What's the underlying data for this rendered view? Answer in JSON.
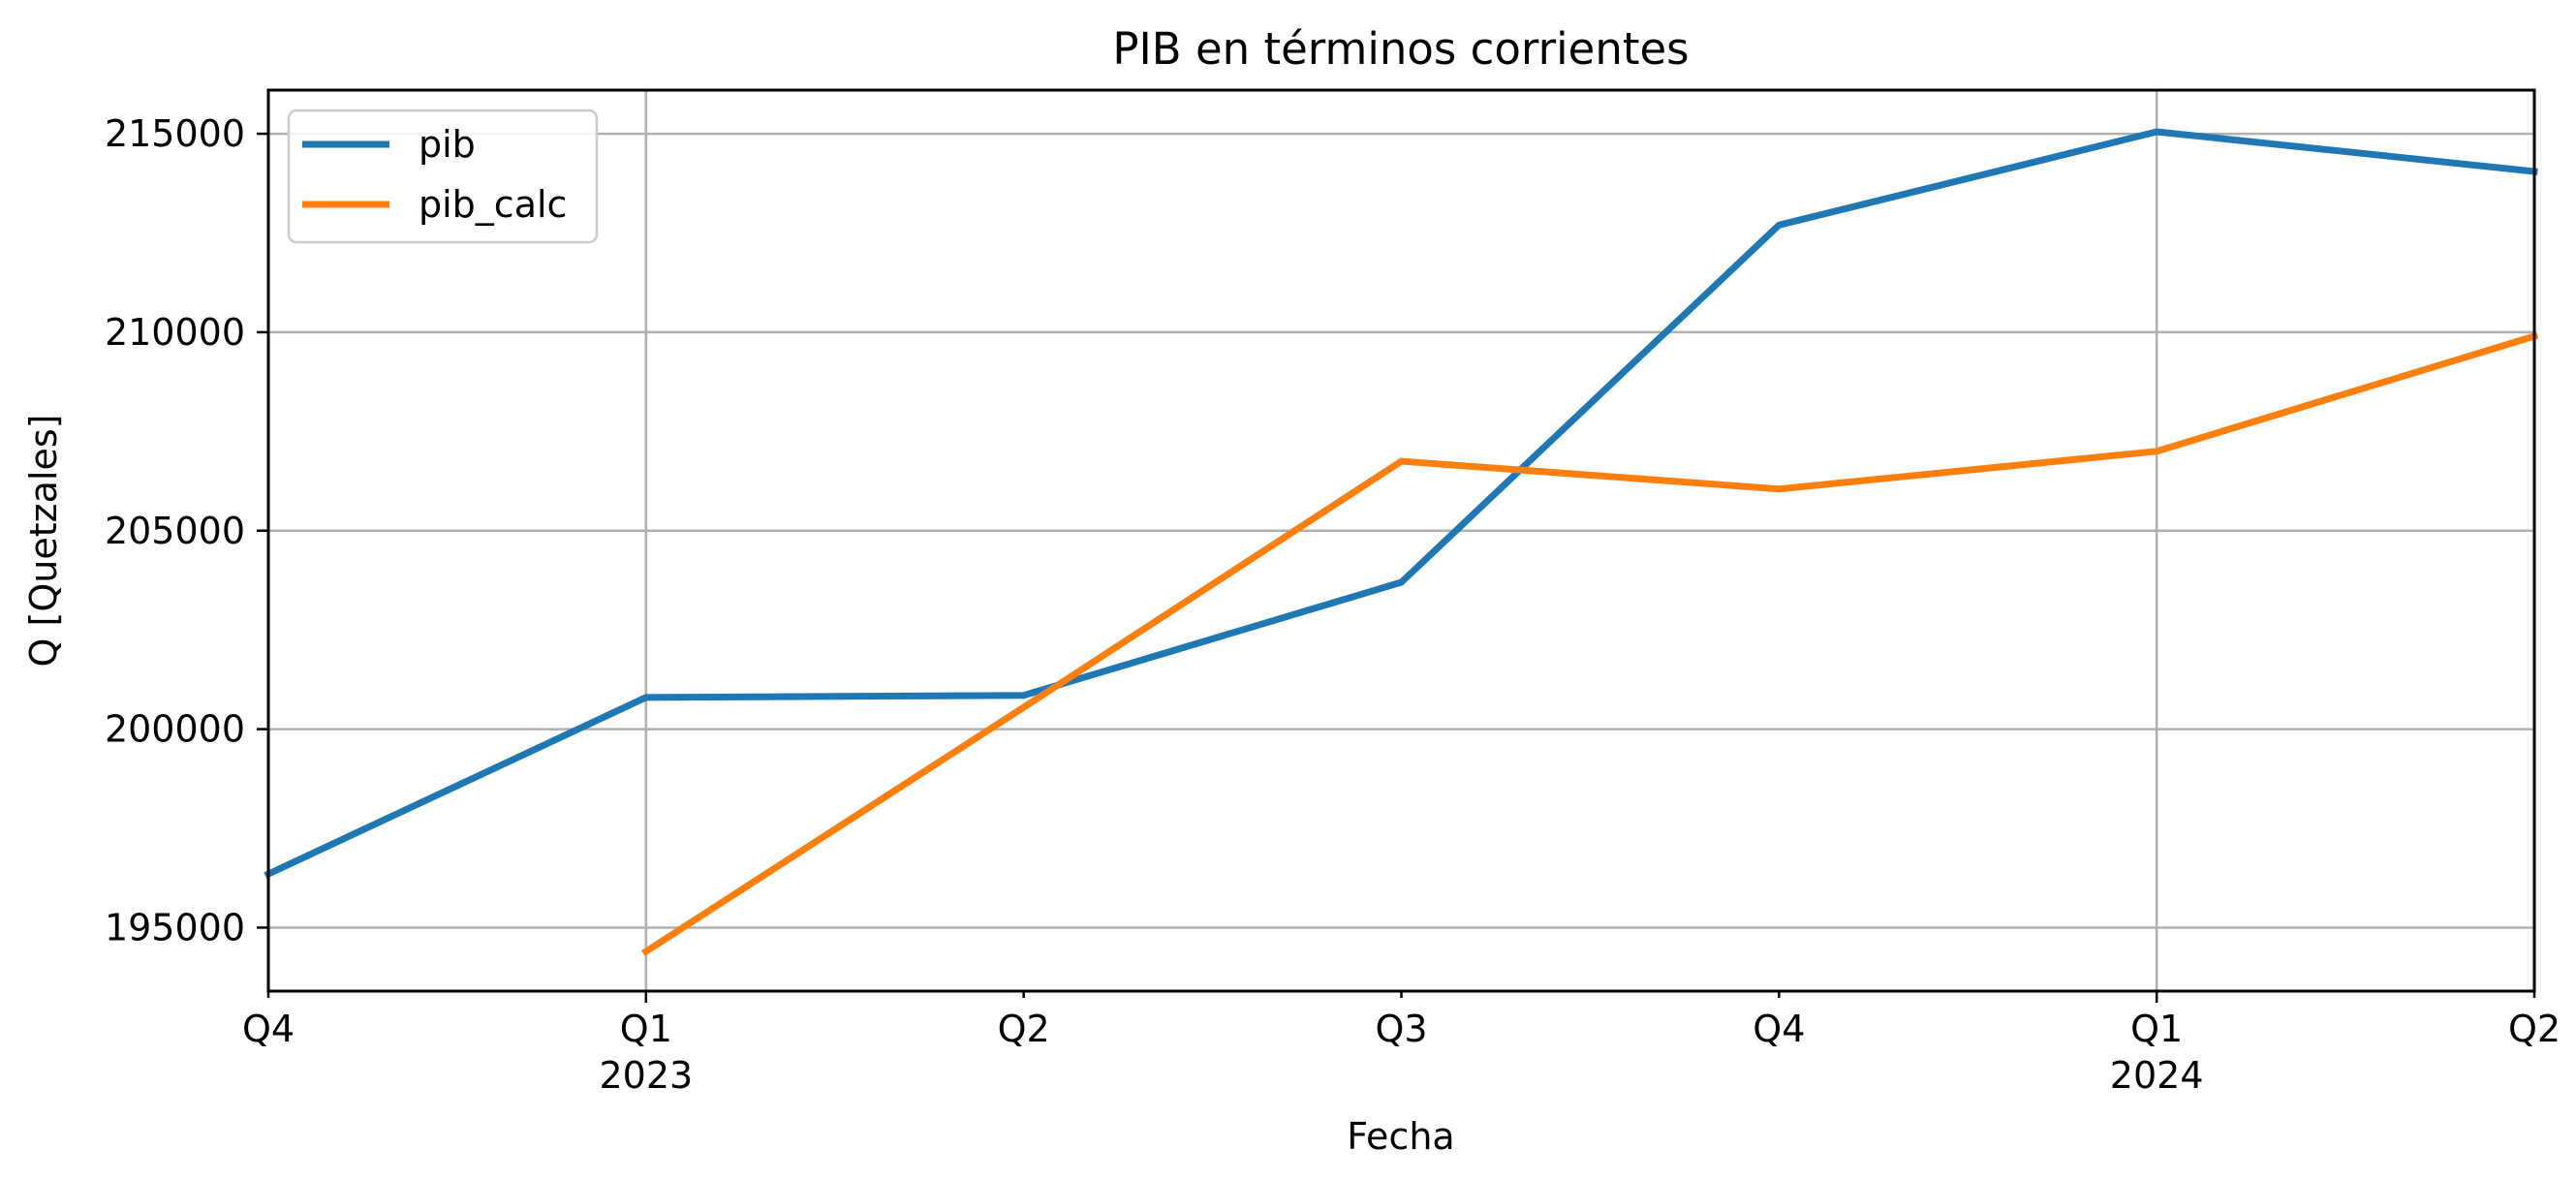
{
  "chart_data": {
    "type": "line",
    "title": "PIB en términos corrientes",
    "xlabel": "Fecha",
    "ylabel": "Q [Quetzales]",
    "x": [
      "2022-Q4",
      "2023-Q1",
      "2023-Q2",
      "2023-Q3",
      "2023-Q4",
      "2024-Q1",
      "2024-Q2"
    ],
    "x_ticks": [
      {
        "label": "Q4",
        "year": ""
      },
      {
        "label": "Q1",
        "year": "2023"
      },
      {
        "label": "Q2",
        "year": ""
      },
      {
        "label": "Q3",
        "year": ""
      },
      {
        "label": "Q4",
        "year": ""
      },
      {
        "label": "Q1",
        "year": "2024"
      },
      {
        "label": "Q2",
        "year": ""
      }
    ],
    "y_ticks": [
      "195000",
      "200000",
      "205000",
      "210000",
      "215000"
    ],
    "ylim": [
      193400,
      216100
    ],
    "grid": true,
    "legend_position": "upper-left",
    "series": [
      {
        "name": "pib",
        "color": "#1f77b4",
        "values": [
          196350,
          200800,
          200850,
          203700,
          212700,
          215050,
          214050
        ]
      },
      {
        "name": "pib_calc",
        "color": "#ff7f0e",
        "values": [
          null,
          194400,
          200550,
          206750,
          206050,
          207000,
          209900
        ]
      }
    ]
  }
}
